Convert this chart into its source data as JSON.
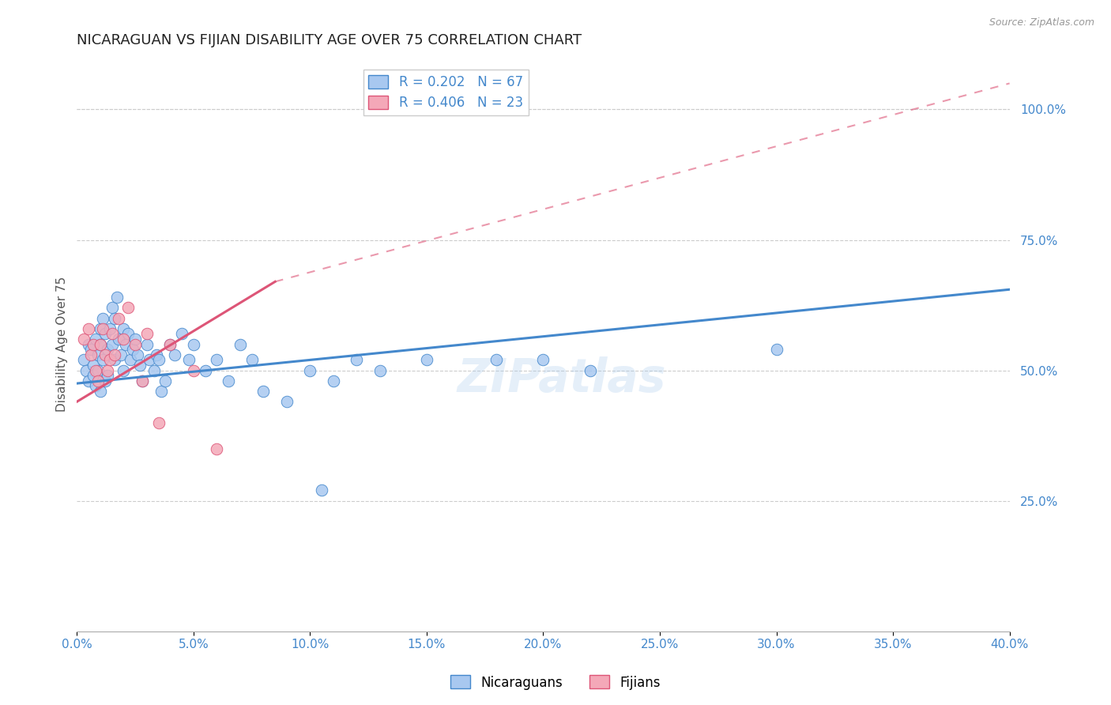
{
  "title": "NICARAGUAN VS FIJIAN DISABILITY AGE OVER 75 CORRELATION CHART",
  "source": "Source: ZipAtlas.com",
  "ylabel": "Disability Age Over 75",
  "xlim": [
    0.0,
    0.4
  ],
  "ylim": [
    0.0,
    1.1
  ],
  "xticks": [
    0.0,
    0.05,
    0.1,
    0.15,
    0.2,
    0.25,
    0.3,
    0.35,
    0.4
  ],
  "yticks_right": [
    0.25,
    0.5,
    0.75,
    1.0
  ],
  "nicaraguan_color": "#a8c8f0",
  "fijian_color": "#f4a8b8",
  "trendline_blue": "#4488cc",
  "trendline_pink": "#dd5577",
  "legend_r_blue": "R = 0.202",
  "legend_n_blue": "N = 67",
  "legend_r_pink": "R = 0.406",
  "legend_n_pink": "N = 23",
  "background_color": "#ffffff",
  "grid_color": "#cccccc",
  "axis_label_color": "#4488cc",
  "title_color": "#222222",
  "watermark": "ZIPatlas",
  "nicaraguans_x": [
    0.003,
    0.004,
    0.005,
    0.005,
    0.006,
    0.007,
    0.007,
    0.008,
    0.008,
    0.009,
    0.009,
    0.01,
    0.01,
    0.01,
    0.011,
    0.011,
    0.012,
    0.012,
    0.013,
    0.013,
    0.014,
    0.015,
    0.015,
    0.016,
    0.016,
    0.017,
    0.018,
    0.019,
    0.02,
    0.02,
    0.021,
    0.022,
    0.023,
    0.024,
    0.025,
    0.026,
    0.027,
    0.028,
    0.03,
    0.031,
    0.033,
    0.034,
    0.035,
    0.036,
    0.038,
    0.04,
    0.042,
    0.045,
    0.048,
    0.05,
    0.055,
    0.06,
    0.065,
    0.07,
    0.075,
    0.08,
    0.09,
    0.1,
    0.11,
    0.12,
    0.13,
    0.15,
    0.18,
    0.2,
    0.22,
    0.3,
    0.105
  ],
  "nicaraguans_y": [
    0.52,
    0.5,
    0.55,
    0.48,
    0.54,
    0.51,
    0.49,
    0.56,
    0.47,
    0.53,
    0.5,
    0.58,
    0.55,
    0.46,
    0.6,
    0.52,
    0.57,
    0.48,
    0.54,
    0.49,
    0.58,
    0.62,
    0.55,
    0.6,
    0.52,
    0.64,
    0.56,
    0.53,
    0.58,
    0.5,
    0.55,
    0.57,
    0.52,
    0.54,
    0.56,
    0.53,
    0.51,
    0.48,
    0.55,
    0.52,
    0.5,
    0.53,
    0.52,
    0.46,
    0.48,
    0.55,
    0.53,
    0.57,
    0.52,
    0.55,
    0.5,
    0.52,
    0.48,
    0.55,
    0.52,
    0.46,
    0.44,
    0.5,
    0.48,
    0.52,
    0.5,
    0.52,
    0.52,
    0.52,
    0.5,
    0.54,
    0.27
  ],
  "fijians_x": [
    0.003,
    0.005,
    0.006,
    0.007,
    0.008,
    0.009,
    0.01,
    0.011,
    0.012,
    0.013,
    0.014,
    0.015,
    0.016,
    0.018,
    0.02,
    0.022,
    0.025,
    0.028,
    0.03,
    0.035,
    0.04,
    0.05,
    0.06
  ],
  "fijians_y": [
    0.56,
    0.58,
    0.53,
    0.55,
    0.5,
    0.48,
    0.55,
    0.58,
    0.53,
    0.5,
    0.52,
    0.57,
    0.53,
    0.6,
    0.56,
    0.62,
    0.55,
    0.48,
    0.57,
    0.4,
    0.55,
    0.5,
    0.35
  ],
  "blue_trend_x0": 0.0,
  "blue_trend_x1": 0.4,
  "blue_trend_y0": 0.475,
  "blue_trend_y1": 0.655,
  "pink_trend_solid_x0": 0.0,
  "pink_trend_solid_x1": 0.085,
  "pink_trend_y0": 0.44,
  "pink_trend_y1": 0.67,
  "pink_trend_dashed_x0": 0.085,
  "pink_trend_dashed_x1": 0.4,
  "pink_trend_dashed_y0": 0.67,
  "pink_trend_dashed_y1": 1.05
}
